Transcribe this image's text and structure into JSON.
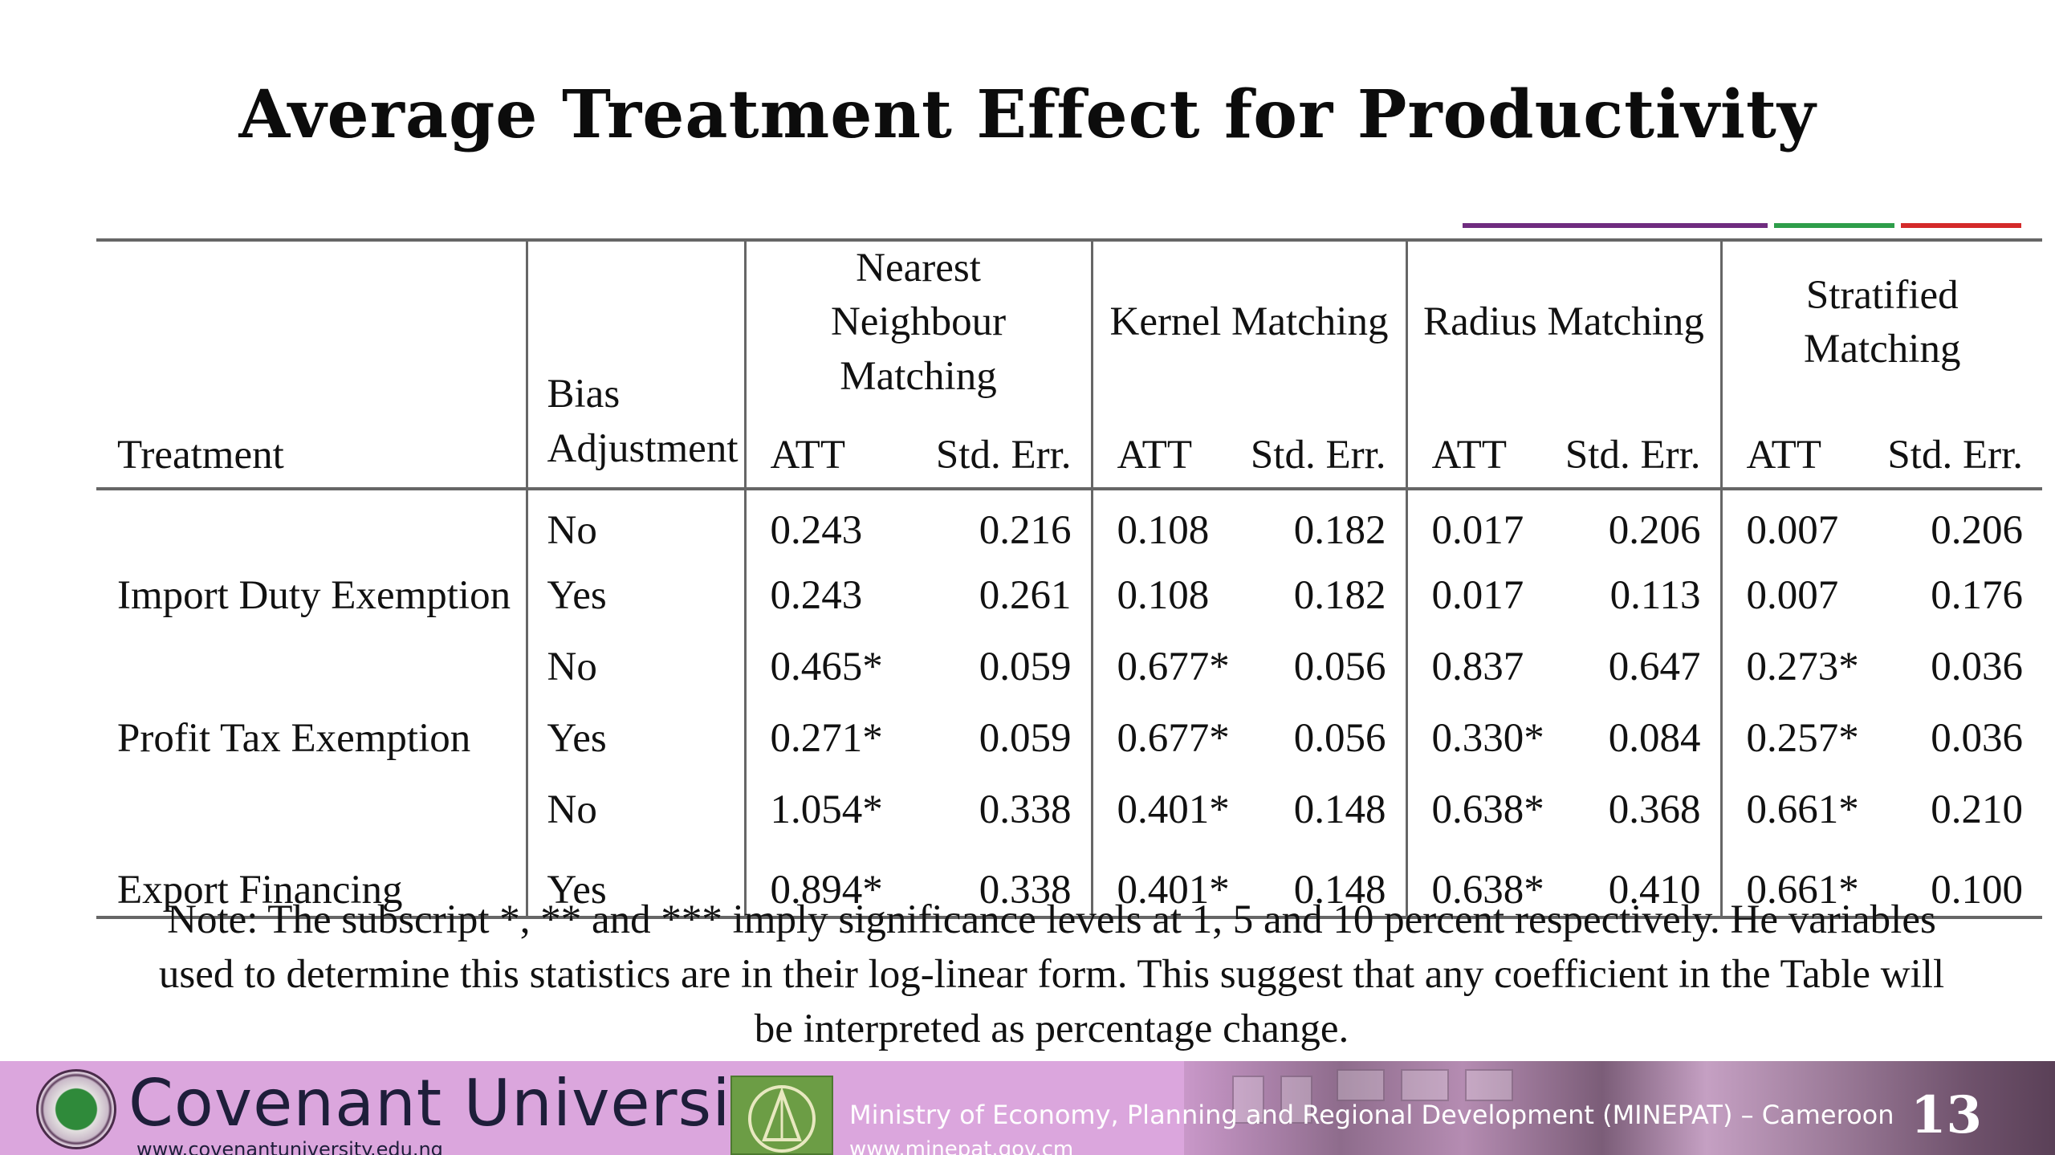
{
  "slide": {
    "title": "Average Treatment Effect for Productivity",
    "page_number": "13",
    "accent_colors": [
      "#6f2c7f",
      "#2e9e4a",
      "#d42a2a"
    ]
  },
  "table": {
    "group_headers": [
      "Nearest Neighbour Matching",
      "Kernel Matching",
      "Radius Matching",
      "Stratified Matching"
    ],
    "col_treatment": "Treatment",
    "col_bias_line1": "Bias",
    "col_bias_line2": "Adjustment",
    "col_att": "ATT",
    "col_se": "Std. Err.",
    "rows": [
      {
        "treatment": "",
        "bias": "No",
        "values": [
          "0.243",
          "0.216",
          "0.108",
          "0.182",
          "0.017",
          "0.206",
          "0.007",
          "0.206"
        ]
      },
      {
        "treatment": "Import Duty Exemption",
        "bias": "Yes",
        "values": [
          "0.243",
          "0.261",
          "0.108",
          "0.182",
          "0.017",
          "0.113",
          "0.007",
          "0.176"
        ]
      },
      {
        "treatment": "",
        "bias": "No",
        "values": [
          "0.465*",
          "0.059",
          "0.677*",
          "0.056",
          "0.837",
          "0.647",
          "0.273*",
          "0.036"
        ]
      },
      {
        "treatment": "Profit Tax Exemption",
        "bias": "Yes",
        "values": [
          "0.271*",
          "0.059",
          "0.677*",
          "0.056",
          "0.330*",
          "0.084",
          "0.257*",
          "0.036"
        ]
      },
      {
        "treatment": "",
        "bias": "No",
        "values": [
          "1.054*",
          "0.338",
          "0.401*",
          "0.148",
          "0.638*",
          "0.368",
          "0.661*",
          "0.210"
        ]
      },
      {
        "treatment": "Export Financing",
        "bias": "Yes",
        "values": [
          "0.894*",
          "0.338",
          "0.401*",
          "0.148",
          "0.638*",
          "0.410",
          "0.661*",
          "0.100"
        ]
      }
    ],
    "note": "Note: The subscript *, ** and *** imply significance levels at 1, 5 and 10 percent respectively. He variables used to determine this statistics are in their log-linear form. This suggest that any coefficient in the Table will be interpreted as percentage change."
  },
  "footer": {
    "university_name": "Covenant University",
    "university_url": "www.covenantuniversity.edu.ng",
    "ministry_name": "Ministry of Economy, Planning and Regional Development (MINEPAT) – Cameroon",
    "ministry_url": "www.minepat.gov.cm",
    "background_color": "#dba6dd"
  }
}
